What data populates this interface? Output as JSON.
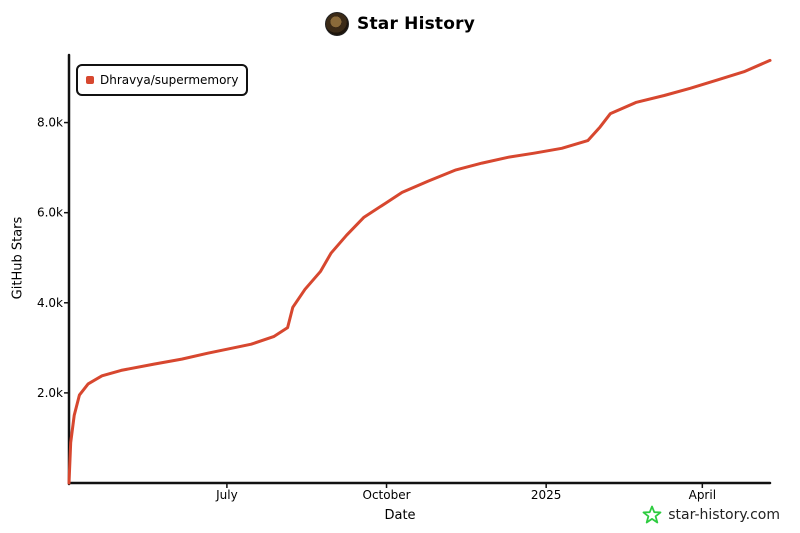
{
  "header": {
    "title": "Star History"
  },
  "watermark": {
    "label": "star-history.com"
  },
  "chart_data": {
    "type": "line",
    "title": "Star History",
    "xlabel": "Date",
    "ylabel": "GitHub Stars",
    "xlim": [
      "2024-04-01",
      "2025-05-10"
    ],
    "ylim": [
      0,
      9500
    ],
    "y_ticks": [
      2000,
      4000,
      6000,
      8000
    ],
    "y_tick_labels": [
      "2.0k",
      "4.0k",
      "6.0k",
      "8.0k"
    ],
    "x_ticks": [
      "2024-07-01",
      "2024-10-01",
      "2025-01-01",
      "2025-04-01"
    ],
    "x_tick_labels": [
      "July",
      "October",
      "2025",
      "April"
    ],
    "grid": false,
    "legend_position": "top-left",
    "series": [
      {
        "name": "Dhravya/supermemory",
        "color": "#d7472f",
        "points": [
          [
            "2024-04-01",
            0
          ],
          [
            "2024-04-02",
            900
          ],
          [
            "2024-04-04",
            1500
          ],
          [
            "2024-04-07",
            1950
          ],
          [
            "2024-04-12",
            2200
          ],
          [
            "2024-04-20",
            2380
          ],
          [
            "2024-05-01",
            2500
          ],
          [
            "2024-05-20",
            2640
          ],
          [
            "2024-06-05",
            2750
          ],
          [
            "2024-06-20",
            2880
          ],
          [
            "2024-07-05",
            3000
          ],
          [
            "2024-07-15",
            3080
          ],
          [
            "2024-07-28",
            3250
          ],
          [
            "2024-08-05",
            3450
          ],
          [
            "2024-08-08",
            3900
          ],
          [
            "2024-08-15",
            4300
          ],
          [
            "2024-08-24",
            4700
          ],
          [
            "2024-08-30",
            5100
          ],
          [
            "2024-09-08",
            5500
          ],
          [
            "2024-09-18",
            5900
          ],
          [
            "2024-09-30",
            6200
          ],
          [
            "2024-10-10",
            6450
          ],
          [
            "2024-10-25",
            6700
          ],
          [
            "2024-11-10",
            6950
          ],
          [
            "2024-11-25",
            7100
          ],
          [
            "2024-12-10",
            7230
          ],
          [
            "2024-12-25",
            7320
          ],
          [
            "2025-01-10",
            7430
          ],
          [
            "2025-01-25",
            7600
          ],
          [
            "2025-02-01",
            7900
          ],
          [
            "2025-02-07",
            8200
          ],
          [
            "2025-02-22",
            8450
          ],
          [
            "2025-03-10",
            8600
          ],
          [
            "2025-03-25",
            8760
          ],
          [
            "2025-04-10",
            8950
          ],
          [
            "2025-04-25",
            9130
          ],
          [
            "2025-05-10",
            9380
          ]
        ]
      }
    ]
  }
}
